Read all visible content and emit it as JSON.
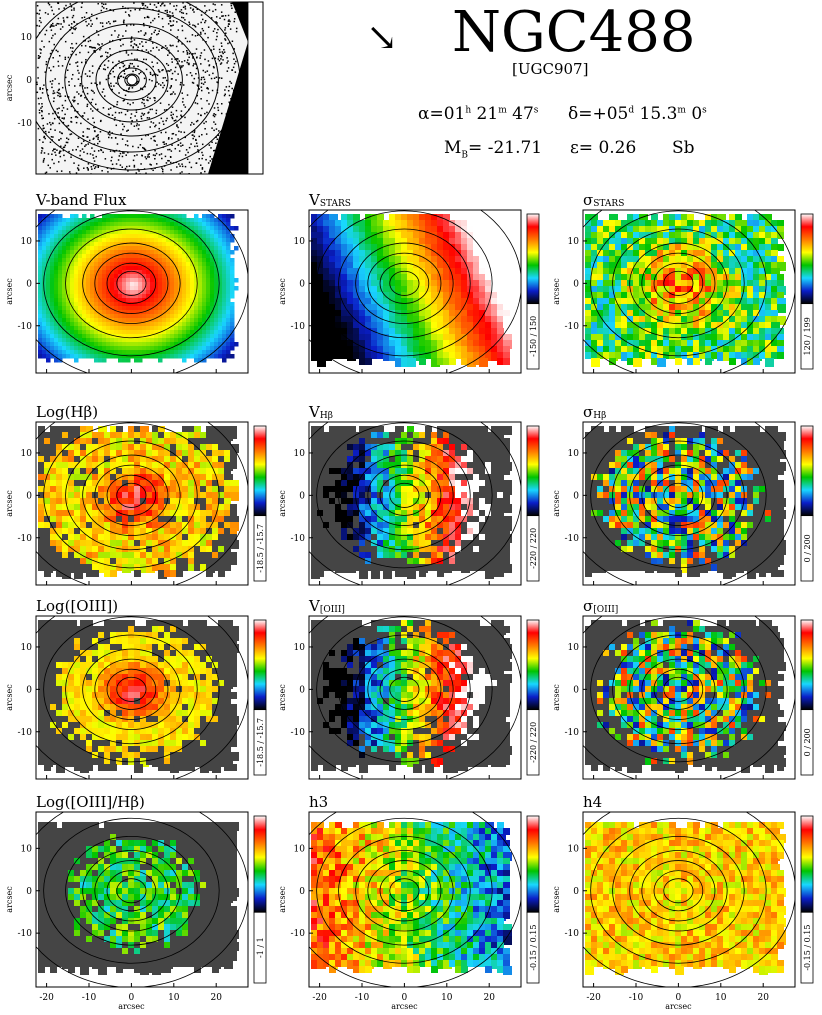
{
  "header": {
    "galaxy_name": "NGC488",
    "alt_name": "[UGC907]",
    "ra_label": "α=01",
    "ra_h": "h",
    "ra_m_val": " 21",
    "ra_m": "m",
    "ra_s_val": " 47",
    "ra_s": "s",
    "dec_label": "δ=+05",
    "dec_d": "d",
    "dec_m_val": " 15.3",
    "dec_m": "m",
    "dec_s_val": " 0",
    "dec_s": "s",
    "mag_label": "M",
    "mag_sub": "B",
    "mag_value": "= -21.71",
    "ellip": "ε= 0.26",
    "morph_type": "Sb",
    "arrow_glyph": "↘"
  },
  "axis": {
    "ylabel": "arcsec",
    "xlabel": "arcsec",
    "yticks": [
      "10",
      "0",
      "-10"
    ],
    "xticks": [
      "-20",
      "-10",
      "0",
      "10",
      "20"
    ]
  },
  "panels": [
    {
      "title": "V-band Flux",
      "kind": "flux",
      "range": ""
    },
    {
      "title": "V",
      "title_sub": "STARS",
      "kind": "vstars",
      "range": "-150 / 150"
    },
    {
      "title": "σ",
      "title_sub": "STARS",
      "kind": "sigma",
      "range": "120 / 199"
    },
    {
      "title": "Log(Hβ)",
      "kind": "logline",
      "range": "-18.5 / -15.7"
    },
    {
      "title": "V",
      "title_sub": "Hβ",
      "kind": "vgas",
      "range": "-220 / 220"
    },
    {
      "title": "σ",
      "title_sub": "Hβ",
      "kind": "siggas",
      "range": "0 / 200"
    },
    {
      "title": "Log([OIII])",
      "kind": "logline2",
      "range": "-18.5 / -15.7"
    },
    {
      "title": "V",
      "title_sub": "[OIII]",
      "kind": "vgas2",
      "range": "-220 / 220"
    },
    {
      "title": "σ",
      "title_sub": "[OIII]",
      "kind": "siggas2",
      "range": "0 / 200"
    },
    {
      "title": "Log([OIII]/Hβ)",
      "kind": "ratio",
      "range": "-1 / 1"
    },
    {
      "title": "h3",
      "kind": "h3",
      "range": "-0.15 / 0.15"
    },
    {
      "title": "h4",
      "kind": "h4",
      "range": "-0.15 / 0.15"
    }
  ],
  "colors": {
    "background_dark": "#454545",
    "contour": "#000000",
    "thumb_bg": "#000000",
    "thumb_field": "#f4f4f4"
  },
  "colorbar_stops": [
    "#000000",
    "#0a1ec8",
    "#19d7ff",
    "#00c400",
    "#ffff00",
    "#ff7a00",
    "#ff0000",
    "#ffffff"
  ]
}
